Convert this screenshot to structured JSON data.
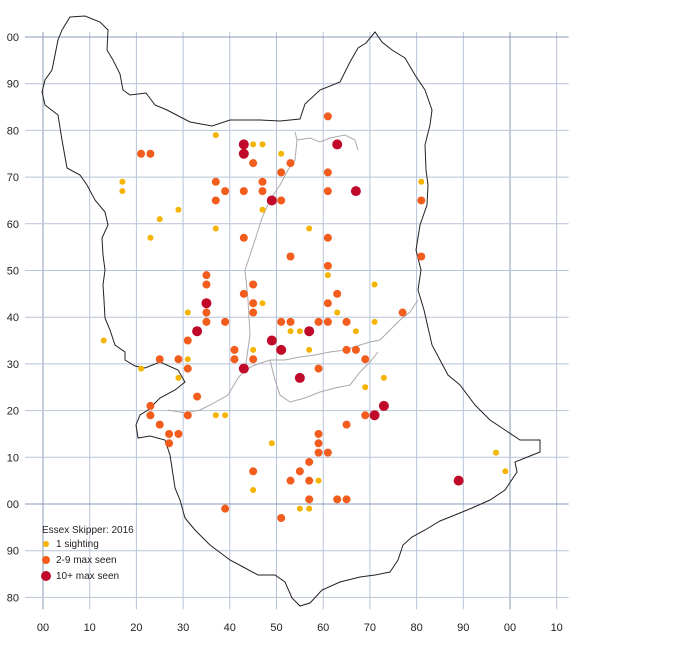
{
  "legend": {
    "title": "Essex Skipper:  2016",
    "items": [
      {
        "label": "1 sighting",
        "color": "#f4b400",
        "size": 3
      },
      {
        "label": "2-9 max seen",
        "color": "#f25c1c",
        "size": 4
      },
      {
        "label": "10+ max seen",
        "color": "#c10a2a",
        "size": 5
      }
    ]
  },
  "grid": {
    "x_labels": [
      "00",
      "10",
      "20",
      "30",
      "40",
      "50",
      "60",
      "70",
      "80",
      "90",
      "00",
      "10"
    ],
    "y_labels": [
      "00",
      "90",
      "80",
      "70",
      "60",
      "50",
      "40",
      "30",
      "20",
      "10",
      "00",
      "90",
      "80"
    ],
    "line_color": "#b8c4d8",
    "major_line_color": "#8a9bb8"
  },
  "colors": {
    "boundary": "#222222",
    "inner_boundary": "#aaaaaa"
  },
  "chart_data": {
    "type": "scatter",
    "x_range": [
      0,
      110
    ],
    "y_range": [
      -20,
      100
    ],
    "points": [
      {
        "x": 17,
        "y": 69,
        "c": 1
      },
      {
        "x": 17,
        "y": 67,
        "c": 1
      },
      {
        "x": 25,
        "y": 61,
        "c": 1
      },
      {
        "x": 29,
        "y": 63,
        "c": 1
      },
      {
        "x": 23,
        "y": 57,
        "c": 1
      },
      {
        "x": 37,
        "y": 79,
        "c": 1
      },
      {
        "x": 45,
        "y": 77,
        "c": 1
      },
      {
        "x": 47,
        "y": 77,
        "c": 1
      },
      {
        "x": 51,
        "y": 75,
        "c": 1
      },
      {
        "x": 47,
        "y": 63,
        "c": 1
      },
      {
        "x": 37,
        "y": 59,
        "c": 1
      },
      {
        "x": 57,
        "y": 59,
        "c": 1
      },
      {
        "x": 61,
        "y": 49,
        "c": 1
      },
      {
        "x": 71,
        "y": 47,
        "c": 1
      },
      {
        "x": 81,
        "y": 69,
        "c": 1
      },
      {
        "x": 13,
        "y": 35,
        "c": 1
      },
      {
        "x": 21,
        "y": 29,
        "c": 1
      },
      {
        "x": 31,
        "y": 41,
        "c": 1
      },
      {
        "x": 29,
        "y": 27,
        "c": 1
      },
      {
        "x": 31,
        "y": 31,
        "c": 1
      },
      {
        "x": 45,
        "y": 33,
        "c": 1
      },
      {
        "x": 47,
        "y": 43,
        "c": 1
      },
      {
        "x": 53,
        "y": 37,
        "c": 1
      },
      {
        "x": 55,
        "y": 37,
        "c": 1
      },
      {
        "x": 57,
        "y": 33,
        "c": 1
      },
      {
        "x": 63,
        "y": 41,
        "c": 1
      },
      {
        "x": 67,
        "y": 37,
        "c": 1
      },
      {
        "x": 71,
        "y": 39,
        "c": 1
      },
      {
        "x": 69,
        "y": 25,
        "c": 1
      },
      {
        "x": 73,
        "y": 27,
        "c": 1
      },
      {
        "x": 37,
        "y": 19,
        "c": 1
      },
      {
        "x": 39,
        "y": 19,
        "c": 1
      },
      {
        "x": 49,
        "y": 13,
        "c": 1
      },
      {
        "x": 45,
        "y": 3,
        "c": 1
      },
      {
        "x": 55,
        "y": -1,
        "c": 1
      },
      {
        "x": 57,
        "y": -1,
        "c": 1
      },
      {
        "x": 59,
        "y": 5,
        "c": 1
      },
      {
        "x": 97,
        "y": 11,
        "c": 1
      },
      {
        "x": 99,
        "y": 7,
        "c": 1
      },
      {
        "x": 21,
        "y": 75,
        "c": 2
      },
      {
        "x": 23,
        "y": 75,
        "c": 2
      },
      {
        "x": 37,
        "y": 69,
        "c": 2
      },
      {
        "x": 37,
        "y": 65,
        "c": 2
      },
      {
        "x": 39,
        "y": 67,
        "c": 2
      },
      {
        "x": 43,
        "y": 67,
        "c": 2
      },
      {
        "x": 45,
        "y": 73,
        "c": 2
      },
      {
        "x": 47,
        "y": 69,
        "c": 2
      },
      {
        "x": 47,
        "y": 67,
        "c": 2
      },
      {
        "x": 51,
        "y": 71,
        "c": 2
      },
      {
        "x": 51,
        "y": 65,
        "c": 2
      },
      {
        "x": 53,
        "y": 73,
        "c": 2
      },
      {
        "x": 61,
        "y": 83,
        "c": 2
      },
      {
        "x": 61,
        "y": 71,
        "c": 2
      },
      {
        "x": 61,
        "y": 67,
        "c": 2
      },
      {
        "x": 61,
        "y": 57,
        "c": 2
      },
      {
        "x": 81,
        "y": 65,
        "c": 2
      },
      {
        "x": 81,
        "y": 53,
        "c": 2
      },
      {
        "x": 43,
        "y": 57,
        "c": 2
      },
      {
        "x": 53,
        "y": 53,
        "c": 2
      },
      {
        "x": 61,
        "y": 51,
        "c": 2
      },
      {
        "x": 35,
        "y": 49,
        "c": 2
      },
      {
        "x": 35,
        "y": 47,
        "c": 2
      },
      {
        "x": 43,
        "y": 45,
        "c": 2
      },
      {
        "x": 45,
        "y": 47,
        "c": 2
      },
      {
        "x": 45,
        "y": 43,
        "c": 2
      },
      {
        "x": 45,
        "y": 41,
        "c": 2
      },
      {
        "x": 35,
        "y": 41,
        "c": 2
      },
      {
        "x": 35,
        "y": 39,
        "c": 2
      },
      {
        "x": 39,
        "y": 39,
        "c": 2
      },
      {
        "x": 31,
        "y": 35,
        "c": 2
      },
      {
        "x": 41,
        "y": 33,
        "c": 2
      },
      {
        "x": 41,
        "y": 31,
        "c": 2
      },
      {
        "x": 45,
        "y": 31,
        "c": 2
      },
      {
        "x": 25,
        "y": 31,
        "c": 2
      },
      {
        "x": 29,
        "y": 31,
        "c": 2
      },
      {
        "x": 31,
        "y": 29,
        "c": 2
      },
      {
        "x": 33,
        "y": 23,
        "c": 2
      },
      {
        "x": 31,
        "y": 19,
        "c": 2
      },
      {
        "x": 23,
        "y": 21,
        "c": 2
      },
      {
        "x": 23,
        "y": 19,
        "c": 2
      },
      {
        "x": 25,
        "y": 17,
        "c": 2
      },
      {
        "x": 27,
        "y": 15,
        "c": 2
      },
      {
        "x": 29,
        "y": 15,
        "c": 2
      },
      {
        "x": 27,
        "y": 13,
        "c": 2
      },
      {
        "x": 51,
        "y": 39,
        "c": 2
      },
      {
        "x": 53,
        "y": 39,
        "c": 2
      },
      {
        "x": 59,
        "y": 39,
        "c": 2
      },
      {
        "x": 61,
        "y": 43,
        "c": 2
      },
      {
        "x": 61,
        "y": 39,
        "c": 2
      },
      {
        "x": 63,
        "y": 45,
        "c": 2
      },
      {
        "x": 65,
        "y": 39,
        "c": 2
      },
      {
        "x": 65,
        "y": 33,
        "c": 2
      },
      {
        "x": 67,
        "y": 33,
        "c": 2
      },
      {
        "x": 69,
        "y": 31,
        "c": 2
      },
      {
        "x": 59,
        "y": 29,
        "c": 2
      },
      {
        "x": 77,
        "y": 41,
        "c": 2
      },
      {
        "x": 69,
        "y": 19,
        "c": 2
      },
      {
        "x": 65,
        "y": 17,
        "c": 2
      },
      {
        "x": 59,
        "y": 15,
        "c": 2
      },
      {
        "x": 59,
        "y": 13,
        "c": 2
      },
      {
        "x": 59,
        "y": 11,
        "c": 2
      },
      {
        "x": 61,
        "y": 11,
        "c": 2
      },
      {
        "x": 57,
        "y": 9,
        "c": 2
      },
      {
        "x": 55,
        "y": 7,
        "c": 2
      },
      {
        "x": 45,
        "y": 7,
        "c": 2
      },
      {
        "x": 53,
        "y": 5,
        "c": 2
      },
      {
        "x": 57,
        "y": 5,
        "c": 2
      },
      {
        "x": 57,
        "y": 1,
        "c": 2
      },
      {
        "x": 63,
        "y": 1,
        "c": 2
      },
      {
        "x": 65,
        "y": 1,
        "c": 2
      },
      {
        "x": 39,
        "y": -1,
        "c": 2
      },
      {
        "x": 51,
        "y": -3,
        "c": 2
      },
      {
        "x": 43,
        "y": 77,
        "c": 3
      },
      {
        "x": 43,
        "y": 75,
        "c": 3
      },
      {
        "x": 63,
        "y": 77,
        "c": 3
      },
      {
        "x": 67,
        "y": 67,
        "c": 3
      },
      {
        "x": 49,
        "y": 65,
        "c": 3
      },
      {
        "x": 35,
        "y": 43,
        "c": 3
      },
      {
        "x": 33,
        "y": 37,
        "c": 3
      },
      {
        "x": 49,
        "y": 35,
        "c": 3
      },
      {
        "x": 51,
        "y": 33,
        "c": 3
      },
      {
        "x": 57,
        "y": 37,
        "c": 3
      },
      {
        "x": 43,
        "y": 29,
        "c": 3
      },
      {
        "x": 55,
        "y": 27,
        "c": 3
      },
      {
        "x": 71,
        "y": 19,
        "c": 3
      },
      {
        "x": 73,
        "y": 21,
        "c": 3
      },
      {
        "x": 89,
        "y": 5,
        "c": 3
      }
    ]
  }
}
